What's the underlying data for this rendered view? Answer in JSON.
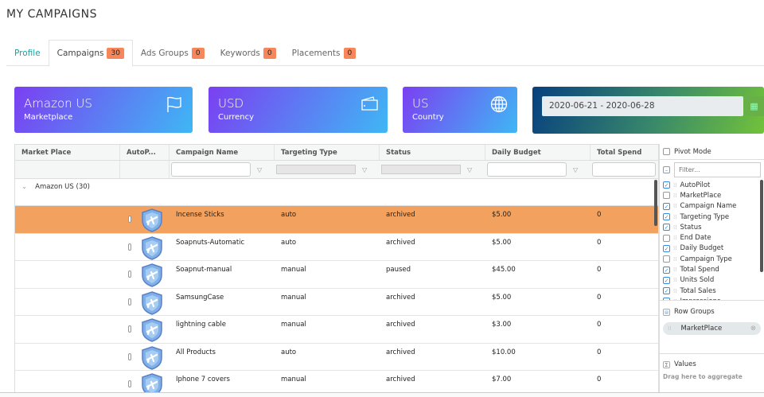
{
  "page_title": "MY CAMPAIGNS",
  "tabs": [
    {
      "label": "Profile"
    },
    {
      "label": "Campaigns",
      "count": "30"
    },
    {
      "label": "Ads Groups",
      "count": "0"
    },
    {
      "label": "Keywords",
      "count": "0"
    },
    {
      "label": "Placements",
      "count": "0"
    }
  ],
  "cards": [
    {
      "value": "Amazon US",
      "label": "Marketplace",
      "icon": "flag-icon"
    },
    {
      "value": "USD",
      "label": "Currency",
      "icon": "wallet-icon"
    },
    {
      "value": "US",
      "label": "Country",
      "icon": "globe-icon"
    }
  ],
  "date_range": "2020-06-21 - 2020-06-28",
  "grid": {
    "columns": [
      "Market Place",
      "AutoP...",
      "Campaign Name",
      "Targeting Type",
      "Status",
      "Daily Budget",
      "Total Spend"
    ],
    "group": "Amazon US (30)",
    "rows": [
      {
        "name": "Incense Sticks",
        "targeting": "auto",
        "status": "archived",
        "budget": "$5.00",
        "spend": "0"
      },
      {
        "name": "Soapnuts-Automatic",
        "targeting": "auto",
        "status": "archived",
        "budget": "$5.00",
        "spend": "0"
      },
      {
        "name": "Soapnut-manual",
        "targeting": "manual",
        "status": "paused",
        "budget": "$45.00",
        "spend": "0"
      },
      {
        "name": "SamsungCase",
        "targeting": "manual",
        "status": "archived",
        "budget": "$5.00",
        "spend": "0"
      },
      {
        "name": "lightning cable",
        "targeting": "manual",
        "status": "archived",
        "budget": "$3.00",
        "spend": "0"
      },
      {
        "name": "All Products",
        "targeting": "auto",
        "status": "archived",
        "budget": "$10.00",
        "spend": "0"
      },
      {
        "name": "Iphone 7 covers",
        "targeting": "manual",
        "status": "archived",
        "budget": "$7.00",
        "spend": "0"
      }
    ],
    "selected_row_color": "#f2a25e"
  },
  "side": {
    "pivot_mode": "Pivot Mode",
    "filter_placeholder": "Filter...",
    "columns": [
      {
        "label": "AutoPilot",
        "checked": true
      },
      {
        "label": "MarketPlace",
        "checked": false
      },
      {
        "label": "Campaign Name",
        "checked": true
      },
      {
        "label": "Targeting Type",
        "checked": true
      },
      {
        "label": "Status",
        "checked": true
      },
      {
        "label": "End Date",
        "checked": false
      },
      {
        "label": "Daily Budget",
        "checked": true
      },
      {
        "label": "Campaign Type",
        "checked": false
      },
      {
        "label": "Total Spend",
        "checked": true
      },
      {
        "label": "Units Sold",
        "checked": true
      },
      {
        "label": "Total Sales",
        "checked": true
      },
      {
        "label": "Impressions",
        "checked": true
      }
    ],
    "row_groups": "Row Groups",
    "row_group_chip": "MarketPlace",
    "values": "Values",
    "values_hint": "Drag here to aggregate"
  }
}
